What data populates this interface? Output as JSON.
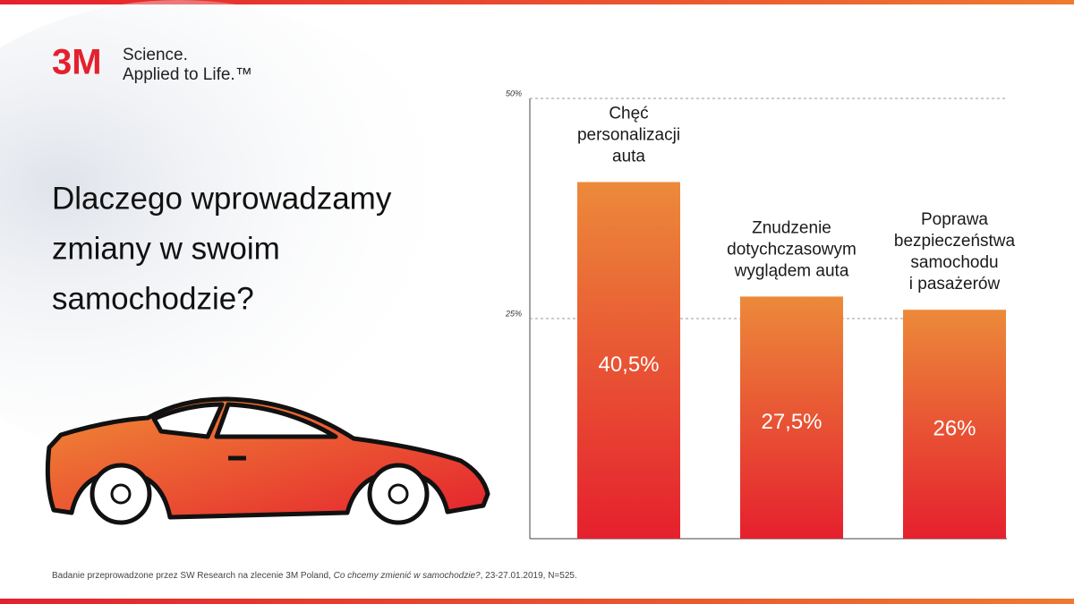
{
  "logo": {
    "mark": "3M",
    "line1": "Science.",
    "line2": "Applied to Life.™"
  },
  "chart_data": {
    "type": "bar",
    "title": [
      "Dlaczego wprowadzamy",
      "zmiany w swoim",
      "samochodzie?"
    ],
    "categories": [
      [
        "Chęć",
        "personalizacji",
        "auta"
      ],
      [
        "Znudzenie",
        "dotychczasowym",
        "wyglądem auta"
      ],
      [
        "Poprawa",
        "bezpieczeństwa",
        "samochodu",
        "i pasażerów"
      ]
    ],
    "values": [
      40.5,
      27.5,
      26
    ],
    "value_labels": [
      "40,5%",
      "27,5%",
      "26%"
    ],
    "color": [
      "#ec8a3a",
      "#e5202e"
    ],
    "ylim": [
      0,
      50
    ],
    "yticks": [
      {
        "value": 25,
        "label": "25%"
      },
      {
        "value": 50,
        "label": "50%"
      }
    ],
    "grid": true
  },
  "footnote": {
    "text": "Badanie przeprowadzone przez SW Research na zlecenie 3M Poland, ",
    "source_title": "Co chcemy zmienić w samochodzie?",
    "details": ", 23-27.01.2019, N=525."
  }
}
